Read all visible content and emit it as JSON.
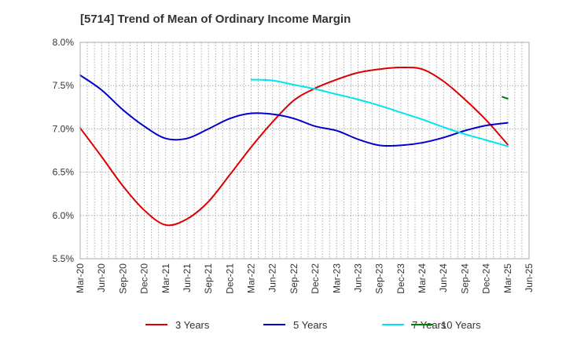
{
  "chart_data": {
    "type": "line",
    "title": "[5714]  Trend of Mean of Ordinary Income Margin",
    "xlabel": "",
    "ylabel": "",
    "x_ticks": [
      "Mar-20",
      "Jun-20",
      "Sep-20",
      "Dec-20",
      "Mar-21",
      "Jun-21",
      "Sep-21",
      "Dec-21",
      "Mar-22",
      "Jun-22",
      "Sep-22",
      "Dec-22",
      "Mar-23",
      "Jun-23",
      "Sep-23",
      "Dec-23",
      "Mar-24",
      "Jun-24",
      "Sep-24",
      "Dec-24",
      "Mar-25",
      "Jun-25"
    ],
    "y_ticks": [
      "5.5%",
      "6.0%",
      "6.5%",
      "7.0%",
      "7.5%",
      "8.0%"
    ],
    "ylim": [
      5.5,
      8.0
    ],
    "grid": true,
    "legend_position": "bottom",
    "series": [
      {
        "name": "3 Years",
        "color": "#dd0000",
        "x": [
          "Mar-20",
          "Jun-20",
          "Sep-20",
          "Dec-20",
          "Mar-21",
          "Jun-21",
          "Sep-21",
          "Dec-21",
          "Mar-22",
          "Jun-22",
          "Sep-22",
          "Dec-22",
          "Mar-23",
          "Jun-23",
          "Sep-23",
          "Dec-23",
          "Mar-24",
          "Jun-24",
          "Sep-24",
          "Dec-24",
          "Mar-25"
        ],
        "values": [
          7.01,
          6.68,
          6.34,
          6.06,
          5.89,
          5.96,
          6.16,
          6.47,
          6.79,
          7.08,
          7.33,
          7.47,
          7.57,
          7.65,
          7.69,
          7.71,
          7.69,
          7.55,
          7.34,
          7.1,
          6.82
        ]
      },
      {
        "name": "5 Years",
        "color": "#0000cc",
        "x": [
          "Mar-20",
          "Jun-20",
          "Sep-20",
          "Dec-20",
          "Mar-21",
          "Jun-21",
          "Sep-21",
          "Dec-21",
          "Mar-22",
          "Jun-22",
          "Sep-22",
          "Dec-22",
          "Mar-23",
          "Jun-23",
          "Sep-23",
          "Dec-23",
          "Mar-24",
          "Jun-24",
          "Sep-24",
          "Dec-24",
          "Mar-25"
        ],
        "values": [
          7.62,
          7.45,
          7.22,
          7.03,
          6.89,
          6.89,
          7.0,
          7.12,
          7.18,
          7.17,
          7.12,
          7.03,
          6.98,
          6.88,
          6.81,
          6.81,
          6.84,
          6.9,
          6.98,
          7.04,
          7.07
        ]
      },
      {
        "name": "7 Years",
        "color": "#00e5ee",
        "x": [
          "Mar-22",
          "Jun-22",
          "Sep-22",
          "Dec-22",
          "Mar-23",
          "Jun-23",
          "Sep-23",
          "Dec-23",
          "Mar-24",
          "Jun-24",
          "Sep-24",
          "Dec-24",
          "Mar-25"
        ],
        "values": [
          7.57,
          7.56,
          7.51,
          7.46,
          7.4,
          7.34,
          7.27,
          7.19,
          7.11,
          7.02,
          6.94,
          6.87,
          6.8
        ]
      },
      {
        "name": "10 Years",
        "color": "#008000",
        "x": [
          "Mar-25"
        ],
        "x_offset_start": -0.25,
        "values_start": 7.37,
        "values": [
          7.35
        ]
      }
    ]
  }
}
